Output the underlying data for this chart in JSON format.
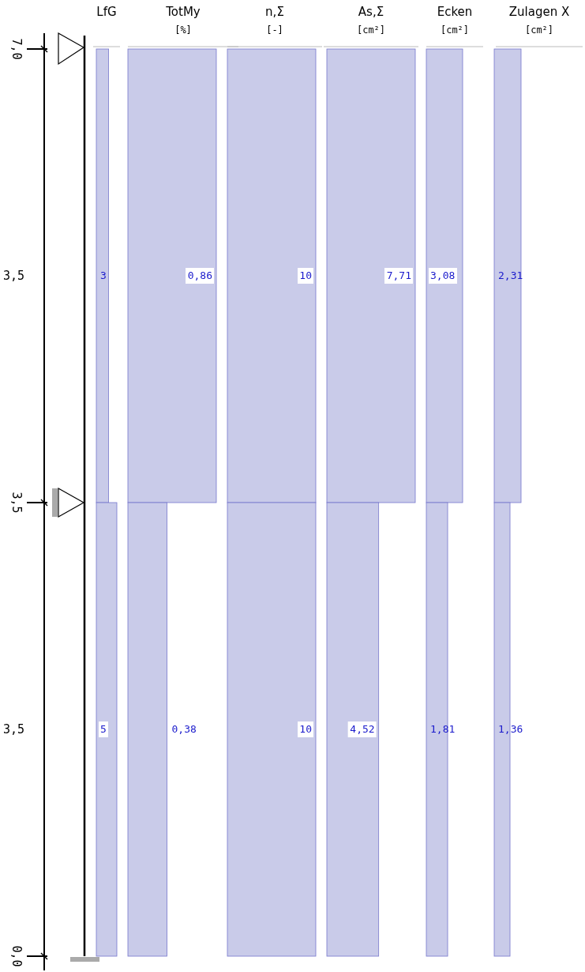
{
  "chart_data": [
    {
      "type": "other",
      "annotations": [
        "7,0",
        "3,5",
        "0,0",
        "3,5",
        "3,5"
      ]
    },
    {
      "type": "bar",
      "orientation": "horizontal",
      "title": "LfG",
      "categories": [
        null,
        null
      ],
      "values": [
        3,
        5
      ],
      "value_labels": [
        "3",
        "5"
      ],
      "color": "#c9cbe9"
    },
    {
      "type": "bar",
      "orientation": "horizontal",
      "title": "TotMy",
      "subtitle": "[%]",
      "categories": [
        null,
        null
      ],
      "values": [
        0.86,
        0.38
      ],
      "value_labels": [
        "0,86",
        "0,38"
      ],
      "color": "#c9cbe9"
    },
    {
      "type": "bar",
      "orientation": "horizontal",
      "title": "n,Σ",
      "subtitle": "[-]",
      "categories": [
        null,
        null
      ],
      "values": [
        10,
        10
      ],
      "value_labels": [
        "10",
        "10"
      ],
      "color": "#c9cbe9"
    },
    {
      "type": "bar",
      "orientation": "horizontal",
      "title": "As,Σ",
      "subtitle": "[cm²]",
      "categories": [
        null,
        null
      ],
      "values": [
        7.71,
        4.52
      ],
      "value_labels": [
        "7,71",
        "4,52"
      ],
      "color": "#c9cbe9"
    },
    {
      "type": "bar",
      "orientation": "horizontal",
      "title": "Ecken",
      "subtitle": "[cm²]",
      "categories": [
        null,
        null
      ],
      "values": [
        3.08,
        1.81
      ],
      "value_labels": [
        "3,08",
        "1,81"
      ],
      "color": "#c9cbe9"
    },
    {
      "type": "bar",
      "orientation": "horizontal",
      "title": "Zulagen X",
      "subtitle": "[cm²]",
      "categories": [
        null,
        null
      ],
      "values": [
        2.31,
        1.36
      ],
      "value_labels": [
        "2,31",
        "1,36"
      ],
      "color": "#c9cbe9"
    }
  ]
}
